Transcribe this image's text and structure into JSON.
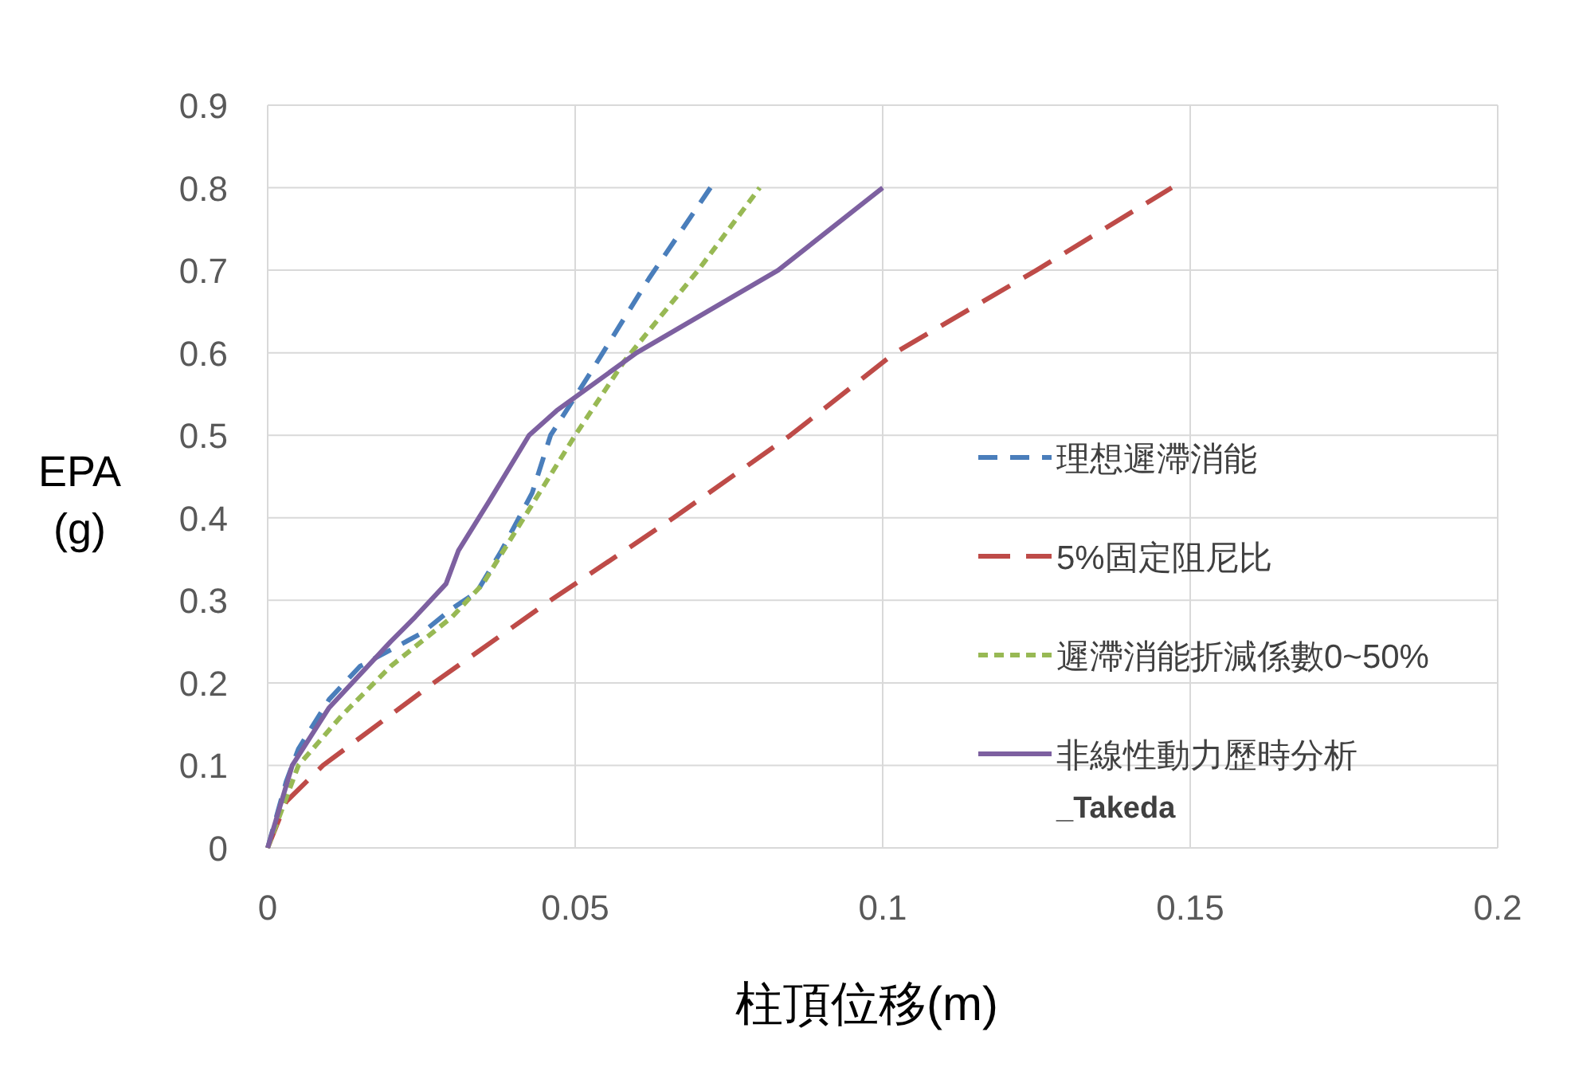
{
  "chart_data": {
    "type": "line",
    "xlabel": "柱頂位移(m)",
    "ylabel": "EPA\n(g)",
    "xlim": [
      0,
      0.2
    ],
    "xticks": [
      0,
      0.05,
      0.1,
      0.15,
      0.2
    ],
    "ylim": [
      0,
      0.9
    ],
    "yticks": [
      0,
      0.1,
      0.2,
      0.3,
      0.4,
      0.5,
      0.6,
      0.7,
      0.8,
      0.9
    ],
    "grid": true,
    "legend": "right",
    "marker": "none",
    "series": [
      {
        "name": "理想遲滯消能",
        "color": "#4a7ebb",
        "line_style": "dashed",
        "x": [
          0,
          0.003,
          0.005,
          0.01,
          0.015,
          0.025,
          0.03,
          0.034,
          0.038,
          0.043,
          0.046,
          0.052,
          0.062,
          0.072
        ],
        "values": [
          0,
          0.08,
          0.12,
          0.18,
          0.22,
          0.26,
          0.29,
          0.31,
          0.36,
          0.43,
          0.5,
          0.57,
          0.69,
          0.8
        ]
      },
      {
        "name": "5%固定阻尼比",
        "color": "#be4b48",
        "line_style": "dashed",
        "x": [
          0,
          0.003,
          0.009,
          0.027,
          0.046,
          0.066,
          0.085,
          0.102,
          0.125,
          0.147
        ],
        "values": [
          0,
          0.056,
          0.1,
          0.2,
          0.3,
          0.4,
          0.5,
          0.6,
          0.7,
          0.8
        ]
      },
      {
        "name": "遲滯消能折減係數0~50%",
        "color": "#98b954",
        "line_style": "dotted",
        "x": [
          0,
          0.005,
          0.012,
          0.02,
          0.03,
          0.035,
          0.04,
          0.05,
          0.058,
          0.07,
          0.08
        ],
        "values": [
          0,
          0.1,
          0.16,
          0.22,
          0.28,
          0.32,
          0.38,
          0.5,
          0.59,
          0.7,
          0.8
        ]
      },
      {
        "name": "非線性動力歷時分析_Takeda",
        "color": "#7d60a0",
        "line_style": "solid",
        "x": [
          0,
          0.004,
          0.01,
          0.02,
          0.024,
          0.029,
          0.031,
          0.036,
          0.0425,
          0.047,
          0.06,
          0.083,
          0.1
        ],
        "values": [
          0,
          0.1,
          0.17,
          0.25,
          0.28,
          0.32,
          0.36,
          0.42,
          0.5,
          0.53,
          0.6,
          0.7,
          0.8
        ]
      }
    ]
  }
}
